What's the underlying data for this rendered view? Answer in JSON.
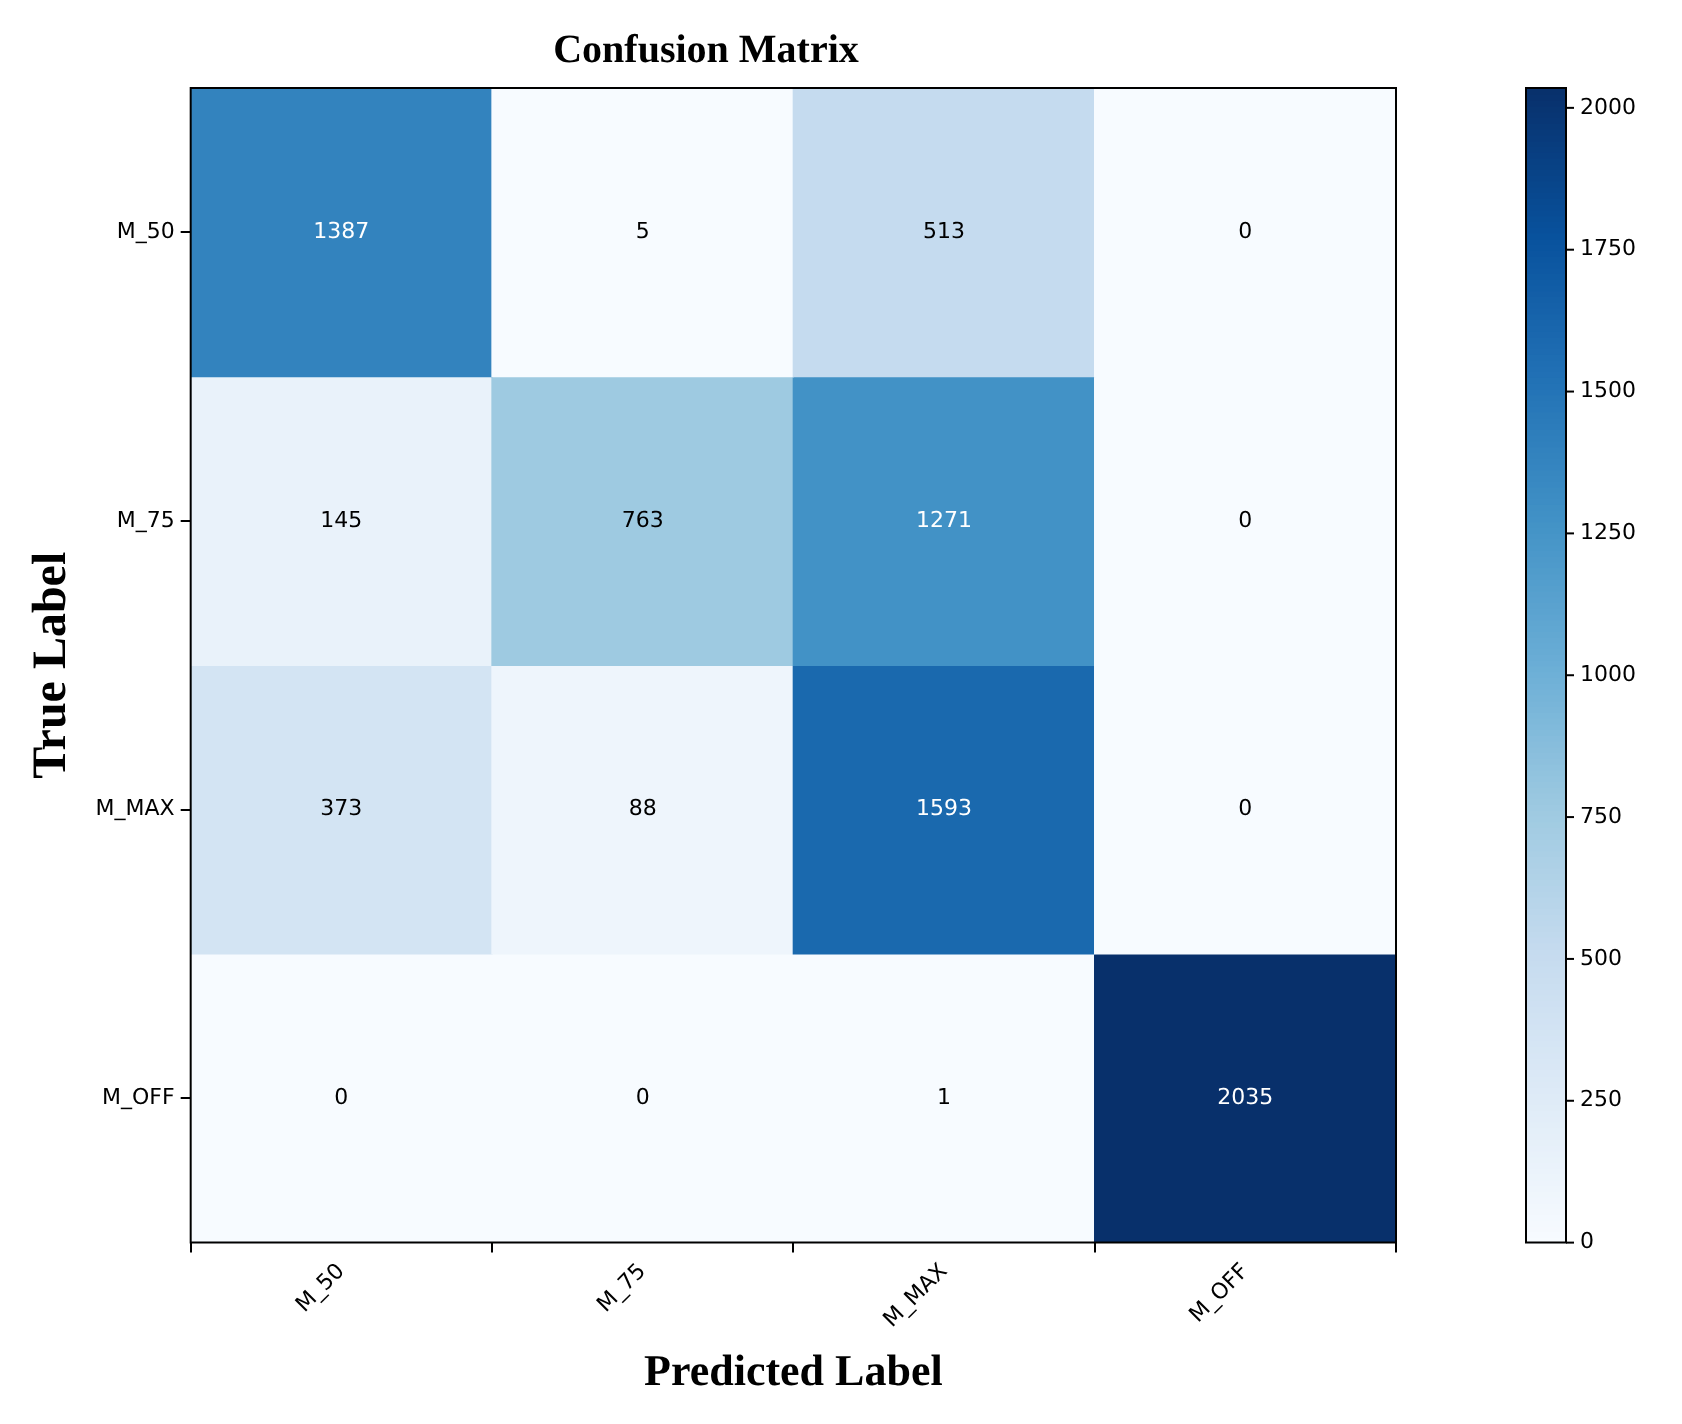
{
  "chart_data": {
    "type": "heatmap",
    "title": "Confusion Matrix",
    "xlabel": "Predicted Label",
    "ylabel": "True Label",
    "categories": [
      "M_50",
      "M_75",
      "M_MAX",
      "M_OFF"
    ],
    "y_categories": [
      "M_50",
      "M_75",
      "M_MAX",
      "M_OFF"
    ],
    "cells": [
      [
        1387,
        5,
        513,
        0
      ],
      [
        145,
        763,
        1271,
        0
      ],
      [
        373,
        88,
        1593,
        0
      ],
      [
        0,
        0,
        1,
        2035
      ]
    ],
    "data_labels": true,
    "clim": [
      0,
      2035
    ],
    "cticks": [
      0,
      250,
      500,
      750,
      1000,
      1250,
      1500,
      1750,
      2000
    ]
  }
}
